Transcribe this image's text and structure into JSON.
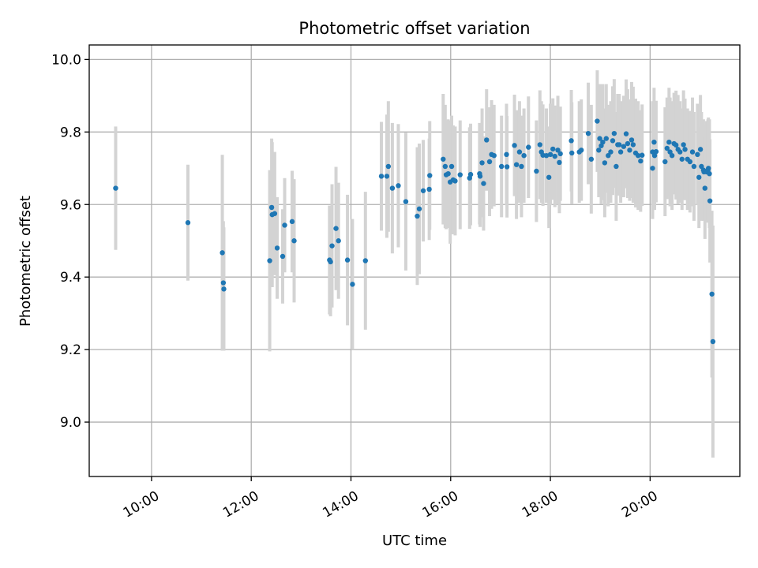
{
  "chart_data": {
    "type": "scatter",
    "title": "Photometric offset variation",
    "xlabel": "UTC time",
    "ylabel": "Photometric offset",
    "grid": true,
    "x_unit": "hours (UTC)",
    "xlim": [
      8.75,
      21.8
    ],
    "ylim": [
      8.85,
      10.04
    ],
    "x_ticks": [
      {
        "value": 10,
        "label": "10:00"
      },
      {
        "value": 12,
        "label": "12:00"
      },
      {
        "value": 14,
        "label": "14:00"
      },
      {
        "value": 16,
        "label": "16:00"
      },
      {
        "value": 18,
        "label": "18:00"
      },
      {
        "value": 20,
        "label": "20:00"
      }
    ],
    "y_ticks": [
      {
        "value": 9.0,
        "label": "9.0"
      },
      {
        "value": 9.2,
        "label": "9.2"
      },
      {
        "value": 9.4,
        "label": "9.4"
      },
      {
        "value": 9.6,
        "label": "9.6"
      },
      {
        "value": 9.8,
        "label": "9.8"
      },
      {
        "value": 10.0,
        "label": "10.0"
      }
    ],
    "point_color": "#1f77b4",
    "errorbar_color": "#d3d3d3",
    "series": [
      {
        "name": "offset",
        "points": [
          [
            9.28,
            9.645,
            0.17
          ],
          [
            10.73,
            9.55,
            0.16
          ],
          [
            11.42,
            9.467,
            0.27
          ],
          [
            11.44,
            9.384,
            0.17
          ],
          [
            11.45,
            9.367,
            0.17
          ],
          [
            12.37,
            9.445,
            0.25
          ],
          [
            12.41,
            9.592,
            0.19
          ],
          [
            12.42,
            9.572,
            0.2
          ],
          [
            12.47,
            9.575,
            0.17
          ],
          [
            12.52,
            9.48,
            0.14
          ],
          [
            12.63,
            9.457,
            0.13
          ],
          [
            12.67,
            9.543,
            0.13
          ],
          [
            12.82,
            9.553,
            0.14
          ],
          [
            12.86,
            9.5,
            0.17
          ],
          [
            13.57,
            9.447,
            0.15
          ],
          [
            13.59,
            9.442,
            0.15
          ],
          [
            13.62,
            9.486,
            0.17
          ],
          [
            13.7,
            9.534,
            0.17
          ],
          [
            13.75,
            9.5,
            0.16
          ],
          [
            13.93,
            9.447,
            0.18
          ],
          [
            14.03,
            9.38,
            0.18
          ],
          [
            14.29,
            9.445,
            0.19
          ],
          [
            14.61,
            9.678,
            0.15
          ],
          [
            14.72,
            9.678,
            0.17
          ],
          [
            14.75,
            9.705,
            0.18
          ],
          [
            14.83,
            9.645,
            0.18
          ],
          [
            14.95,
            9.652,
            0.17
          ],
          [
            15.1,
            9.608,
            0.19
          ],
          [
            15.33,
            9.568,
            0.19
          ],
          [
            15.37,
            9.588,
            0.18
          ],
          [
            15.45,
            9.638,
            0.14
          ],
          [
            15.57,
            9.642,
            0.14
          ],
          [
            15.58,
            9.68,
            0.15
          ],
          [
            15.85,
            9.725,
            0.18
          ],
          [
            15.89,
            9.705,
            0.17
          ],
          [
            15.91,
            9.682,
            0.15
          ],
          [
            15.95,
            9.685,
            0.15
          ],
          [
            15.99,
            9.662,
            0.17
          ],
          [
            16.02,
            9.705,
            0.14
          ],
          [
            16.05,
            9.668,
            0.15
          ],
          [
            16.09,
            9.665,
            0.15
          ],
          [
            16.19,
            9.682,
            0.15
          ],
          [
            16.38,
            9.673,
            0.14
          ],
          [
            16.4,
            9.683,
            0.14
          ],
          [
            16.58,
            9.685,
            0.14
          ],
          [
            16.59,
            9.678,
            0.14
          ],
          [
            16.63,
            9.715,
            0.15
          ],
          [
            16.66,
            9.658,
            0.13
          ],
          [
            16.72,
            9.778,
            0.14
          ],
          [
            16.78,
            9.718,
            0.15
          ],
          [
            16.82,
            9.738,
            0.15
          ],
          [
            16.87,
            9.735,
            0.14
          ],
          [
            17.02,
            9.705,
            0.14
          ],
          [
            17.12,
            9.738,
            0.14
          ],
          [
            17.13,
            9.704,
            0.14
          ],
          [
            17.28,
            9.763,
            0.14
          ],
          [
            17.32,
            9.71,
            0.15
          ],
          [
            17.38,
            9.745,
            0.14
          ],
          [
            17.42,
            9.705,
            0.14
          ],
          [
            17.47,
            9.735,
            0.13
          ],
          [
            17.56,
            9.758,
            0.14
          ],
          [
            17.72,
            9.692,
            0.14
          ],
          [
            17.79,
            9.765,
            0.15
          ],
          [
            17.82,
            9.745,
            0.14
          ],
          [
            17.85,
            9.736,
            0.14
          ],
          [
            17.92,
            9.735,
            0.13
          ],
          [
            17.97,
            9.675,
            0.14
          ],
          [
            18.0,
            9.738,
            0.14
          ],
          [
            18.05,
            9.753,
            0.14
          ],
          [
            18.09,
            9.733,
            0.14
          ],
          [
            18.15,
            9.75,
            0.15
          ],
          [
            18.18,
            9.716,
            0.14
          ],
          [
            18.2,
            9.74,
            0.13
          ],
          [
            18.42,
            9.776,
            0.14
          ],
          [
            18.43,
            9.742,
            0.14
          ],
          [
            18.58,
            9.745,
            0.14
          ],
          [
            18.62,
            9.75,
            0.14
          ],
          [
            18.76,
            9.796,
            0.14
          ],
          [
            18.82,
            9.725,
            0.15
          ],
          [
            18.94,
            9.83,
            0.14
          ],
          [
            18.97,
            9.75,
            0.13
          ],
          [
            18.99,
            9.782,
            0.15
          ],
          [
            19.02,
            9.762,
            0.16
          ],
          [
            19.05,
            9.772,
            0.16
          ],
          [
            19.09,
            9.715,
            0.15
          ],
          [
            19.12,
            9.782,
            0.15
          ],
          [
            19.16,
            9.735,
            0.14
          ],
          [
            19.21,
            9.745,
            0.14
          ],
          [
            19.25,
            9.776,
            0.15
          ],
          [
            19.28,
            9.796,
            0.15
          ],
          [
            19.32,
            9.705,
            0.15
          ],
          [
            19.35,
            9.765,
            0.14
          ],
          [
            19.38,
            9.765,
            0.14
          ],
          [
            19.41,
            9.745,
            0.14
          ],
          [
            19.47,
            9.76,
            0.14
          ],
          [
            19.52,
            9.795,
            0.15
          ],
          [
            19.55,
            9.768,
            0.15
          ],
          [
            19.59,
            9.75,
            0.14
          ],
          [
            19.63,
            9.778,
            0.16
          ],
          [
            19.66,
            9.765,
            0.16
          ],
          [
            19.71,
            9.742,
            0.15
          ],
          [
            19.76,
            9.735,
            0.15
          ],
          [
            19.81,
            9.72,
            0.14
          ],
          [
            19.84,
            9.736,
            0.14
          ],
          [
            20.05,
            9.745,
            0.14
          ],
          [
            20.08,
            9.772,
            0.15
          ],
          [
            20.09,
            9.735,
            0.15
          ],
          [
            20.12,
            9.746,
            0.14
          ],
          [
            20.05,
            9.7,
            0.14
          ],
          [
            20.3,
            9.718,
            0.15
          ],
          [
            20.34,
            9.755,
            0.14
          ],
          [
            20.38,
            9.772,
            0.15
          ],
          [
            20.4,
            9.745,
            0.15
          ],
          [
            20.44,
            9.735,
            0.15
          ],
          [
            20.48,
            9.768,
            0.14
          ],
          [
            20.52,
            9.764,
            0.15
          ],
          [
            20.56,
            9.752,
            0.15
          ],
          [
            20.6,
            9.745,
            0.14
          ],
          [
            20.64,
            9.725,
            0.14
          ],
          [
            20.67,
            9.765,
            0.15
          ],
          [
            20.7,
            9.752,
            0.14
          ],
          [
            20.75,
            9.725,
            0.14
          ],
          [
            20.8,
            9.718,
            0.14
          ],
          [
            20.85,
            9.745,
            0.15
          ],
          [
            20.88,
            9.705,
            0.15
          ],
          [
            20.95,
            9.738,
            0.14
          ],
          [
            20.98,
            9.675,
            0.14
          ],
          [
            21.01,
            9.752,
            0.15
          ],
          [
            21.03,
            9.705,
            0.15
          ],
          [
            21.07,
            9.695,
            0.14
          ],
          [
            21.08,
            9.69,
            0.13
          ],
          [
            21.1,
            9.645,
            0.14
          ],
          [
            21.13,
            9.69,
            0.14
          ],
          [
            21.16,
            9.695,
            0.14
          ],
          [
            21.17,
            9.7,
            0.14
          ],
          [
            21.19,
            9.685,
            0.15
          ],
          [
            21.2,
            9.61,
            0.17
          ],
          [
            21.24,
            9.353,
            0.23
          ],
          [
            21.26,
            9.222,
            0.32
          ]
        ]
      }
    ]
  }
}
